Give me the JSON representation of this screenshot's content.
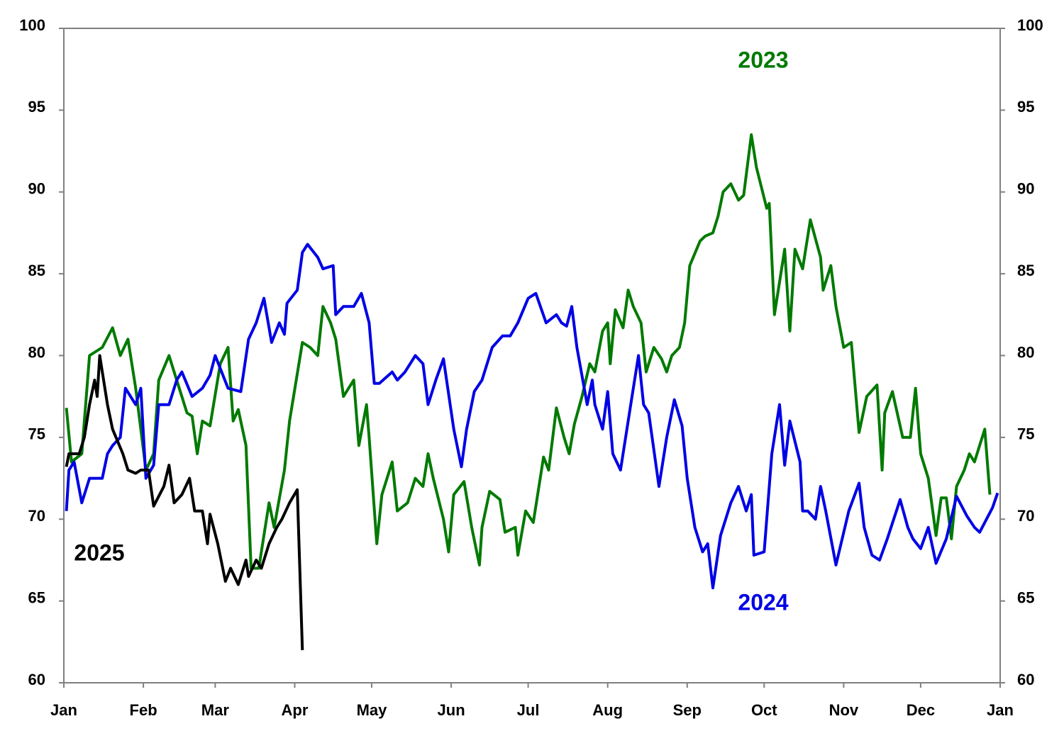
{
  "chart_data": {
    "type": "line",
    "xlim": [
      0,
      365
    ],
    "xticks": [
      {
        "value": 0,
        "label": "Jan"
      },
      {
        "value": 31,
        "label": "Feb"
      },
      {
        "value": 59,
        "label": "Mar"
      },
      {
        "value": 90,
        "label": "Apr"
      },
      {
        "value": 120,
        "label": "May"
      },
      {
        "value": 151,
        "label": "Jun"
      },
      {
        "value": 181,
        "label": "Jul"
      },
      {
        "value": 212,
        "label": "Aug"
      },
      {
        "value": 243,
        "label": "Sep"
      },
      {
        "value": 273,
        "label": "Oct"
      },
      {
        "value": 304,
        "label": "Nov"
      },
      {
        "value": 334,
        "label": "Dec"
      },
      {
        "value": 365,
        "label": "Jan"
      }
    ],
    "ylim": [
      60,
      100
    ],
    "yticks": [
      60,
      65,
      70,
      75,
      80,
      85,
      90,
      95,
      100
    ],
    "y2lim": [
      60,
      100
    ],
    "y2ticks": [
      60,
      65,
      70,
      75,
      80,
      85,
      90,
      95,
      100
    ],
    "series": [
      {
        "name": "2023",
        "color": "#007a00",
        "x": [
          1,
          3,
          7,
          10,
          15,
          19,
          22,
          25,
          28,
          32,
          35,
          37,
          41,
          44,
          48,
          50,
          52,
          54,
          57,
          61,
          64,
          66,
          68,
          71,
          73,
          76,
          80,
          82,
          86,
          88,
          93,
          96,
          99,
          101,
          104,
          106,
          109,
          113,
          115,
          118,
          119,
          122,
          124,
          128,
          130,
          134,
          137,
          140,
          142,
          144,
          148,
          150,
          152,
          156,
          159,
          162,
          163,
          166,
          170,
          172,
          176,
          177,
          180,
          183,
          187,
          189,
          192,
          195,
          197,
          199,
          202,
          205,
          207,
          210,
          212,
          213,
          215,
          218,
          220,
          222,
          225,
          227,
          230,
          233,
          235,
          237,
          240,
          242,
          244,
          248,
          250,
          253,
          255,
          257,
          260,
          263,
          265,
          268,
          270,
          274,
          275,
          277,
          281,
          283,
          285,
          288,
          291,
          295,
          296,
          299,
          301,
          304,
          307,
          310,
          313,
          317,
          319,
          320,
          323,
          327,
          330,
          332,
          334,
          337,
          340,
          342,
          344,
          346,
          348,
          351,
          353,
          355,
          359,
          361
        ],
        "values": [
          76.8,
          73.5,
          74,
          80,
          80.5,
          81.7,
          80,
          81,
          78,
          73,
          74,
          78.5,
          80,
          78.5,
          76.5,
          76.3,
          74,
          76,
          75.7,
          79.5,
          80.5,
          76,
          76.7,
          74.5,
          67,
          67,
          71,
          69.5,
          73,
          76,
          80.8,
          80.5,
          80,
          83,
          82,
          81,
          77.5,
          78.5,
          74.5,
          77,
          75,
          68.5,
          71.5,
          73.5,
          70.5,
          71,
          72.5,
          72,
          74,
          72.5,
          70,
          68,
          71.5,
          72.3,
          69.5,
          67.2,
          69.5,
          71.7,
          71.2,
          69.2,
          69.5,
          67.8,
          70.5,
          69.8,
          73.8,
          73,
          76.8,
          75,
          74,
          75.8,
          77.5,
          79.5,
          79,
          81.5,
          82,
          79.5,
          82.8,
          81.7,
          84,
          83,
          82,
          79,
          80.5,
          79.8,
          79,
          80,
          80.5,
          82,
          85.5,
          87,
          87.3,
          87.5,
          88.5,
          90,
          90.5,
          89.5,
          89.8,
          93.5,
          91.5,
          89,
          89.3,
          82.5,
          86.5,
          81.5,
          86.5,
          85.3,
          88.3,
          86,
          84,
          85.5,
          83,
          80.5,
          80.8,
          75.3,
          77.5,
          78.2,
          73,
          76.5,
          77.8,
          75,
          75,
          78,
          74,
          72.5,
          69,
          71.3,
          71.3,
          68.8,
          72,
          73,
          74,
          73.5,
          75.5,
          71.5
        ]
      },
      {
        "name": "2024",
        "color": "#0000e6",
        "x": [
          1,
          2,
          4,
          7,
          10,
          15,
          17,
          19,
          22,
          24,
          28,
          30,
          32,
          35,
          37,
          41,
          44,
          46,
          50,
          54,
          57,
          59,
          64,
          69,
          72,
          75,
          78,
          81,
          84,
          86,
          87,
          91,
          93,
          95,
          99,
          101,
          105,
          106,
          109,
          113,
          116,
          119,
          121,
          123,
          128,
          130,
          133,
          137,
          140,
          142,
          145,
          148,
          152,
          155,
          157,
          160,
          163,
          167,
          171,
          174,
          177,
          181,
          184,
          188,
          192,
          194,
          196,
          198,
          200,
          204,
          206,
          207,
          210,
          212,
          214,
          217,
          221,
          224,
          226,
          228,
          232,
          235,
          238,
          241,
          243,
          246,
          249,
          251,
          253,
          256,
          260,
          263,
          266,
          268,
          269,
          273,
          276,
          279,
          281,
          283,
          287,
          288,
          290,
          293,
          295,
          297,
          301,
          306,
          310,
          312,
          315,
          318,
          321,
          326,
          329,
          331,
          334,
          337,
          340,
          344,
          348,
          352,
          355,
          357,
          359,
          362,
          364
        ],
        "values": [
          70.5,
          73,
          73.5,
          71,
          72.5,
          72.5,
          74,
          74.5,
          75,
          78,
          77,
          78,
          72.5,
          73.3,
          77,
          77,
          78.5,
          79,
          77.5,
          78,
          78.8,
          80,
          78,
          77.8,
          81,
          82,
          83.5,
          80.8,
          82,
          81.3,
          83.2,
          84,
          86.3,
          86.8,
          86,
          85.3,
          85.5,
          82.5,
          83,
          83,
          83.8,
          82,
          78.3,
          78.3,
          79,
          78.5,
          79,
          80,
          79.5,
          77,
          78.5,
          79.8,
          75.5,
          73.2,
          75.5,
          77.8,
          78.5,
          80.5,
          81.2,
          81.2,
          82,
          83.5,
          83.8,
          82,
          82.5,
          82,
          81.8,
          83,
          80.5,
          77,
          78.5,
          77,
          75.5,
          77.8,
          74,
          73,
          77,
          80,
          77,
          76.5,
          72,
          75,
          77.3,
          75.7,
          72.5,
          69.5,
          68,
          68.5,
          65.8,
          69,
          71,
          72,
          70.5,
          71.5,
          67.8,
          68,
          74,
          77,
          73.3,
          76,
          73.5,
          70.5,
          70.5,
          70,
          72,
          70.5,
          67.2,
          70.5,
          72.2,
          69.5,
          67.8,
          67.5,
          68.8,
          71.2,
          69.5,
          68.8,
          68.2,
          69.5,
          67.3,
          68.8,
          71.4,
          70.2,
          69.5,
          69.2,
          69.8,
          70.7,
          71.6
        ]
      },
      {
        "name": "2025",
        "color": "#000000",
        "x": [
          1,
          2,
          6,
          8,
          10,
          12,
          13,
          14,
          17,
          19,
          23,
          25,
          28,
          30,
          33,
          35,
          39,
          41,
          43,
          46,
          49,
          51,
          54,
          56,
          57,
          60,
          63,
          65,
          68,
          71,
          72,
          75,
          77,
          80,
          83,
          85,
          88,
          91,
          93
        ],
        "values": [
          73.2,
          74,
          74,
          75,
          77,
          78.5,
          77.5,
          80,
          77,
          75.5,
          74,
          73,
          72.8,
          73,
          73,
          70.8,
          72,
          73.3,
          71,
          71.5,
          72.5,
          70.5,
          70.5,
          68.5,
          70.3,
          68.5,
          66.2,
          67,
          66,
          67.5,
          66.5,
          67.5,
          67,
          68.5,
          69.5,
          70,
          71,
          71.8,
          62
        ]
      }
    ]
  }
}
